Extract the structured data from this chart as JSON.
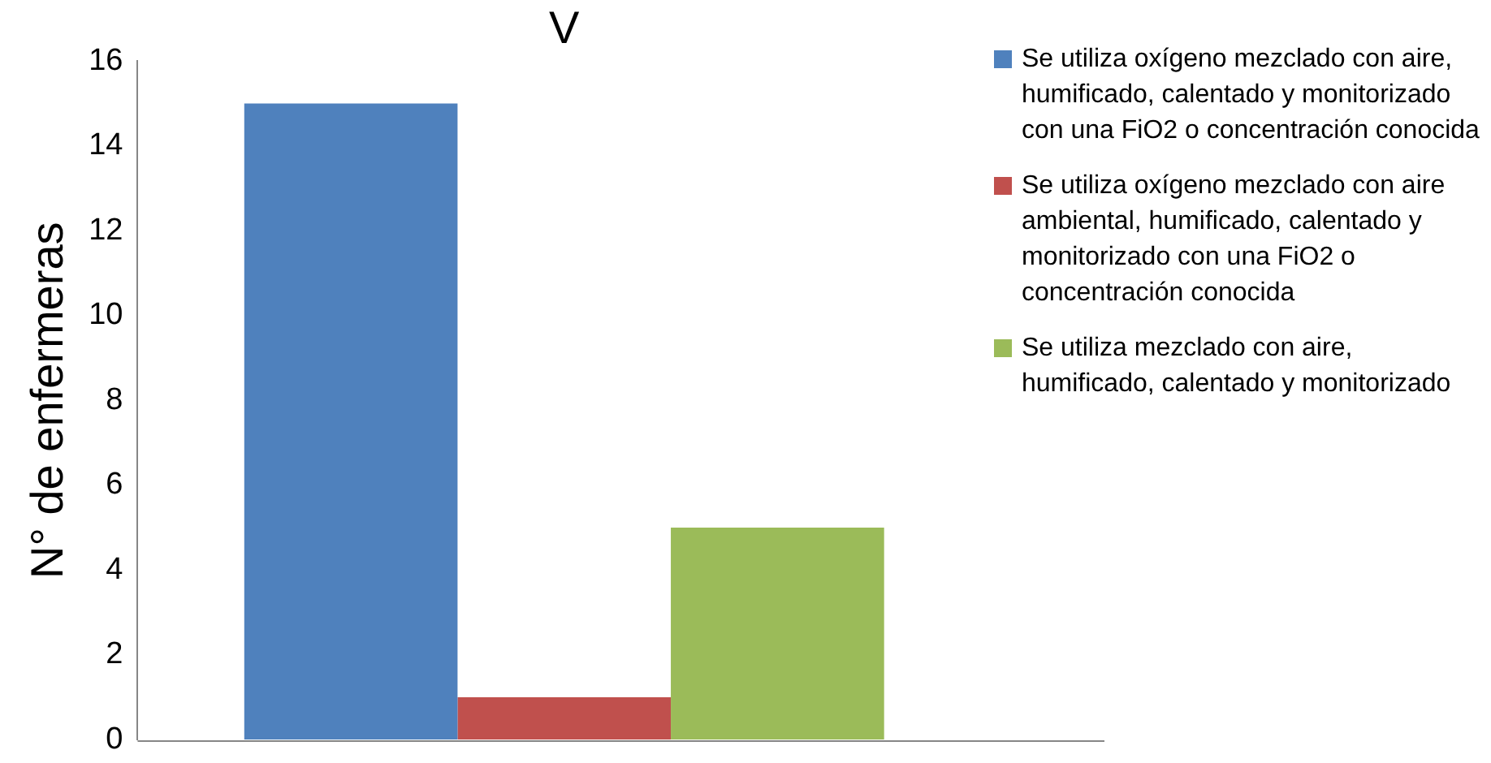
{
  "chart_data": {
    "type": "bar",
    "ylabel": "N° de enfermeras",
    "categories": [
      "V"
    ],
    "series": [
      {
        "name": "Se utiliza oxígeno mezclado con aire, humificado, calentado y monitorizado con una FiO2 o concentración conocida",
        "color": "#4f81bd",
        "values": [
          15
        ]
      },
      {
        "name": "Se utiliza oxígeno mezclado con aire ambiental, humificado, calentado y monitorizado con una FiO2 o concentración conocida",
        "color": "#c0504d",
        "values": [
          1
        ]
      },
      {
        "name": "Se utiliza mezclado con aire, humificado, calentado y monitorizado",
        "color": "#9bbb59",
        "values": [
          5
        ]
      }
    ],
    "ylim": [
      0,
      16
    ],
    "yticks": [
      0,
      2,
      4,
      6,
      8,
      10,
      12,
      14,
      16
    ],
    "grid": false,
    "legend": "right"
  }
}
